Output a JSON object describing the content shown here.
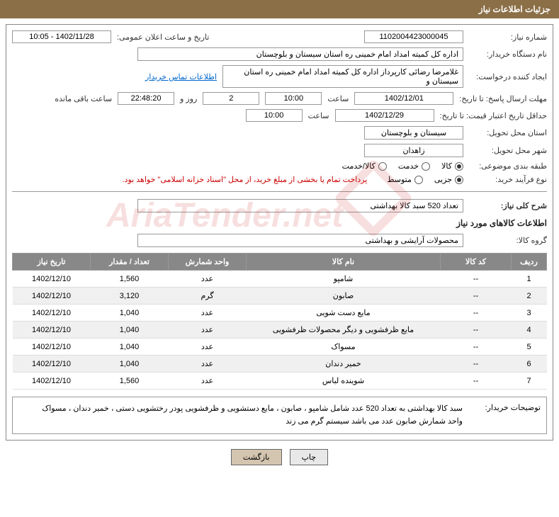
{
  "header": {
    "title": "جزئیات اطلاعات نیاز"
  },
  "form": {
    "need_number_label": "شماره نیاز:",
    "need_number": "1102004423000045",
    "announce_datetime_label": "تاریخ و ساعت اعلان عمومی:",
    "announce_datetime": "1402/11/28 - 10:05",
    "buyer_org_label": "نام دستگاه خریدار:",
    "buyer_org": "اداره کل کمیته امداد امام خمینی ره استان سیستان و بلوچستان",
    "requester_label": "ایجاد کننده درخواست:",
    "requester": "غلامرضا رضائی کارپرداز اداره کل کمیته امداد امام خمینی ره استان سیستان و",
    "buyer_contact_link": "اطلاعات تماس خریدار",
    "deadline_label": "مهلت ارسال پاسخ: تا تاریخ:",
    "deadline_date": "1402/12/01",
    "time_label": "ساعت",
    "deadline_time": "10:00",
    "days": "2",
    "days_label": "روز و",
    "remaining_time": "22:48:20",
    "remaining_label": "ساعت باقی مانده",
    "validity_label": "حداقل تاریخ اعتبار قیمت: تا تاریخ:",
    "validity_date": "1402/12/29",
    "validity_time": "10:00",
    "delivery_province_label": "استان محل تحویل:",
    "delivery_province": "سیستان و بلوچستان",
    "delivery_city_label": "شهر محل تحویل:",
    "delivery_city": "زاهدان",
    "category_label": "طبقه بندی موضوعی:",
    "cat_goods": "کالا",
    "cat_service": "خدمت",
    "cat_both": "کالا/خدمت",
    "process_type_label": "نوع فرآیند خرید:",
    "proc_partial": "جزیی",
    "proc_medium": "متوسط",
    "payment_note": "پرداخت تمام یا بخشی از مبلغ خرید، از محل \"اسناد خزانه اسلامی\" خواهد بود.",
    "desc_label": "شرح کلی نیاز:",
    "desc_text": "تعداد 520 سبد کالا بهداشتی",
    "items_title": "اطلاعات کالاهای مورد نیاز",
    "group_label": "گروه کالا:",
    "group_value": "محصولات آرایشی و بهداشتی",
    "note_label": "توضیحات خریدار:",
    "note_text1": "سبد کالا بهداشتی به تعداد 520 عدد شامل شامپو ، صابون ، مایع دستشویی و ظرفشویی پودر رختشویی دستی ، خمیر دندان ، مسواک",
    "note_text2": "واحد شمارش صابون عدد می باشد سیستم گرم می زند"
  },
  "table": {
    "headers": [
      "ردیف",
      "کد کالا",
      "نام کالا",
      "واحد شمارش",
      "تعداد / مقدار",
      "تاریخ نیاز"
    ],
    "rows": [
      [
        "1",
        "--",
        "شامپو",
        "عدد",
        "1,560",
        "1402/12/10"
      ],
      [
        "2",
        "--",
        "صابون",
        "گرم",
        "3,120",
        "1402/12/10"
      ],
      [
        "3",
        "--",
        "مایع دست شویی",
        "عدد",
        "1,040",
        "1402/12/10"
      ],
      [
        "4",
        "--",
        "مایع ظرفشویی و دیگر محصولات ظرفشویی",
        "عدد",
        "1,040",
        "1402/12/10"
      ],
      [
        "5",
        "--",
        "مسواک",
        "عدد",
        "1,040",
        "1402/12/10"
      ],
      [
        "6",
        "--",
        "خمیر دندان",
        "عدد",
        "1,040",
        "1402/12/10"
      ],
      [
        "7",
        "--",
        "شوینده لباس",
        "عدد",
        "1,560",
        "1402/12/10"
      ]
    ]
  },
  "buttons": {
    "back": "بازگشت",
    "print": "چاپ"
  },
  "colors": {
    "header_bg": "#8b6f47",
    "th_bg": "#888888",
    "border": "#999999",
    "link": "#0066cc",
    "red": "#cc0000"
  }
}
